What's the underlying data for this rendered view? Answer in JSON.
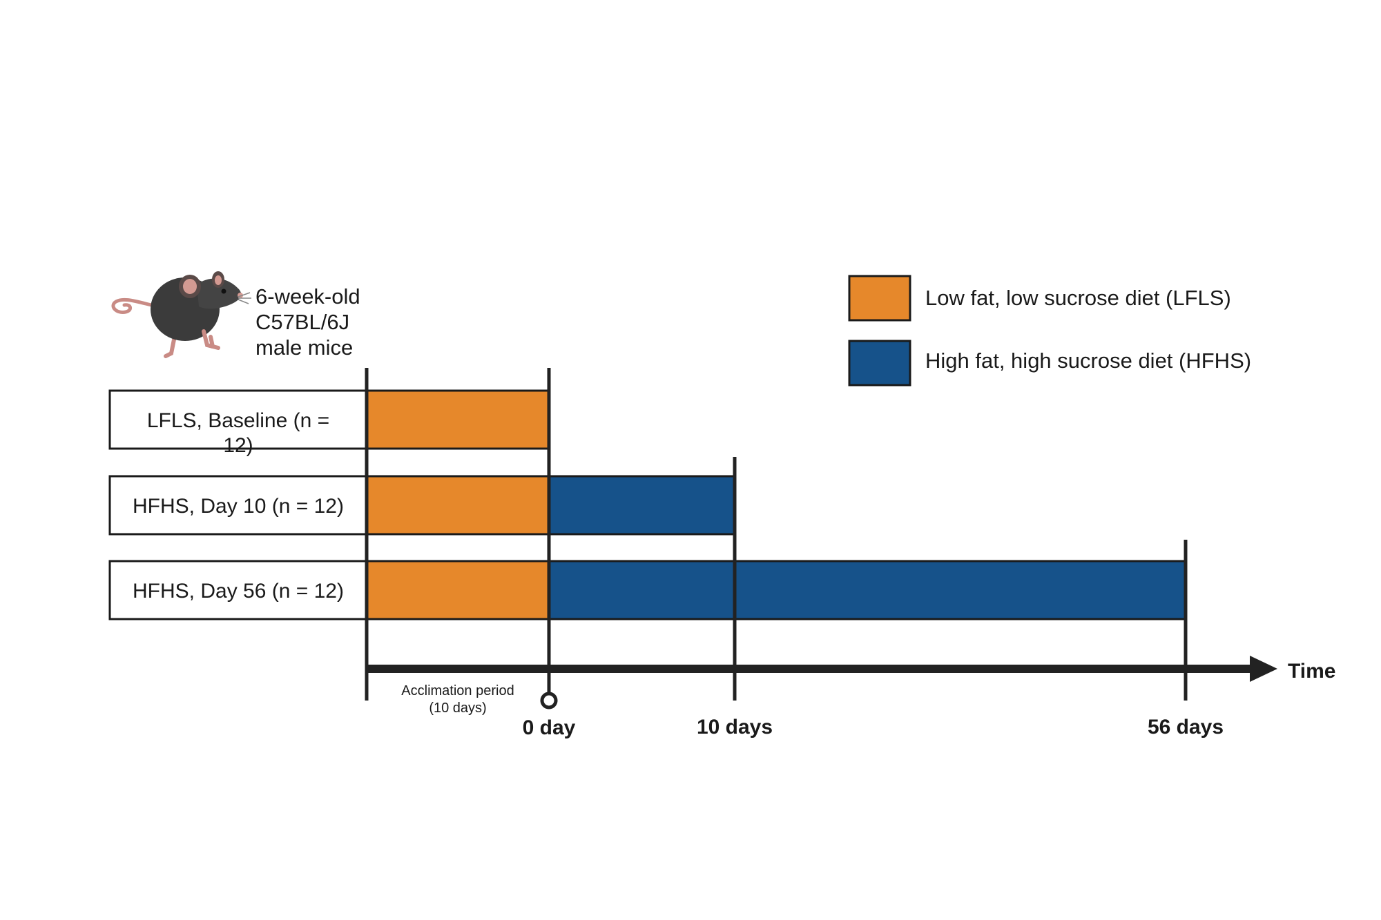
{
  "colors": {
    "lfls": "#E6882B",
    "hfhs": "#16528A",
    "line": "#222222"
  },
  "subject": {
    "icon": "mouse-icon",
    "line1": "6-week-old",
    "line2": "C57BL/6J",
    "line3": "male mice"
  },
  "legend": [
    {
      "label": "Low fat, low sucrose diet (LFLS)",
      "color_key": "lfls"
    },
    {
      "label": "High fat, high sucrose diet (HFHS)",
      "color_key": "hfhs"
    }
  ],
  "groups": [
    {
      "label_line1": "LFLS, Baseline (n =",
      "label_line2": "12)"
    },
    {
      "label_line1": "HFHS, Day 10 (n = 12)",
      "label_line2": ""
    },
    {
      "label_line1": "HFHS, Day 56 (n = 12)",
      "label_line2": ""
    }
  ],
  "timeline": {
    "axis_label": "Time",
    "acclimation_line1": "Acclimation period",
    "acclimation_line2": "(10 days)",
    "ticks": [
      "0 day",
      "10 days",
      "56 days"
    ]
  }
}
